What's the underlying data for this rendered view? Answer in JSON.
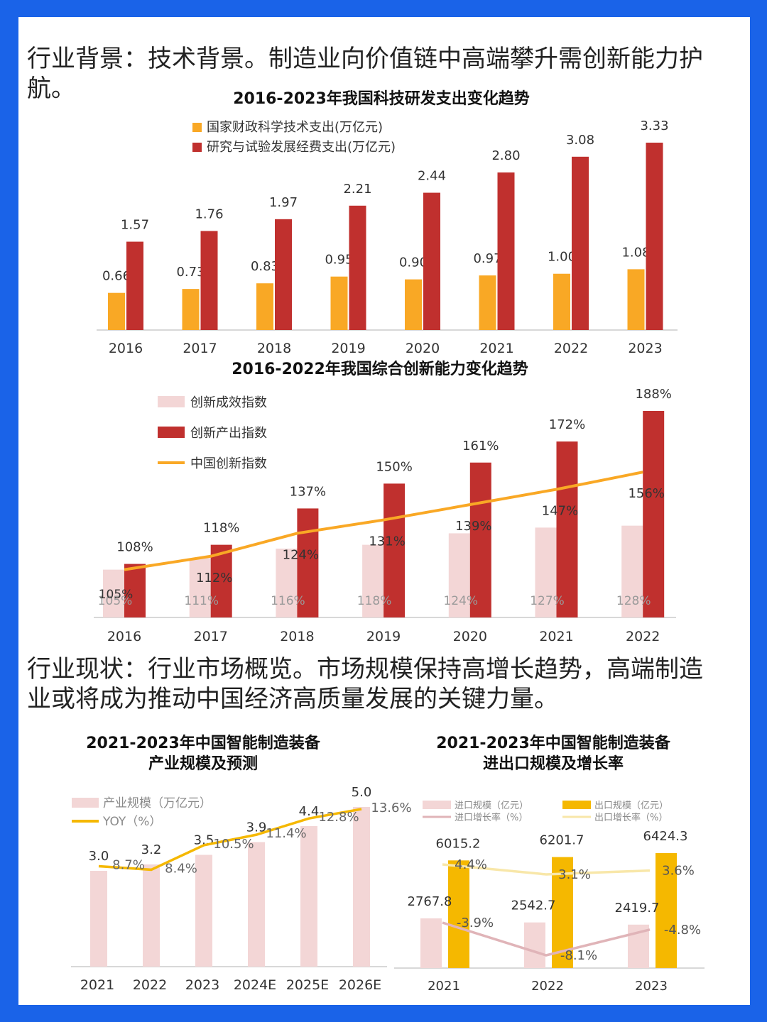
{
  "headings": {
    "background": "行业背景：技术背景。制造业向价值链中高端攀升需创新能力护航。",
    "status": "行业现状：行业市场概览。市场规模保持高增长趋势，高端制造业或将成为推动中国经济高质量发展的关键力量。"
  },
  "colors": {
    "frame": "#1a63e8",
    "orange": "#f9a825",
    "darkred": "#c0302e",
    "pink": "#f3d6d6",
    "gold": "#f5b800",
    "lightgold": "#f8e7a9",
    "mauve": "#e0b4b8"
  },
  "chart_data": [
    {
      "type": "bar",
      "title": "2016-2023年我国科技研发支出变化趋势",
      "categories": [
        "2016",
        "2017",
        "2018",
        "2019",
        "2020",
        "2021",
        "2022",
        "2023"
      ],
      "series": [
        {
          "name": "国家财政科学技术支出(万亿元)",
          "values": [
            0.66,
            0.73,
            0.83,
            0.95,
            0.9,
            0.97,
            1.0,
            1.08
          ],
          "labels": [
            "0.66",
            "0.73",
            "0.83",
            "0.95",
            "0.90",
            "0.97",
            "1.00",
            "1.08"
          ]
        },
        {
          "name": "研究与试验发展经费支出(万亿元)",
          "values": [
            1.57,
            1.76,
            1.97,
            2.21,
            2.44,
            2.8,
            3.08,
            3.33
          ],
          "labels": [
            "1.57",
            "1.76",
            "1.97",
            "2.21",
            "2.44",
            "2.80",
            "3.08",
            "3.33"
          ]
        }
      ],
      "ylim": [
        0,
        3.33
      ],
      "legend": "top-left"
    },
    {
      "type": "bar",
      "title": "2016-2022年我国综合创新能力变化趋势",
      "categories": [
        "2016",
        "2017",
        "2018",
        "2019",
        "2020",
        "2021",
        "2022"
      ],
      "series": [
        {
          "name": "创新成效指数",
          "values": [
            105,
            111,
            116,
            118,
            124,
            127,
            128
          ],
          "labels": [
            "105%",
            "111%",
            "116%",
            "118%",
            "124%",
            "127%",
            "128%"
          ]
        },
        {
          "name": "创新产出指数",
          "values": [
            108,
            118,
            137,
            150,
            161,
            172,
            188
          ],
          "labels": [
            "108%",
            "118%",
            "137%",
            "150%",
            "161%",
            "172%",
            "188%"
          ]
        },
        {
          "name": "中国创新指数",
          "type": "line",
          "values": [
            105,
            112,
            124,
            131,
            139,
            147,
            156
          ],
          "labels": [
            "105%",
            "112%",
            "124%",
            "131%",
            "139%",
            "147%",
            "156%"
          ]
        }
      ],
      "ylim": [
        80,
        188
      ],
      "legend": "top-left"
    },
    {
      "type": "bar",
      "title": "2021-2023年中国智能制造装备\n产业规模及预测",
      "categories": [
        "2021",
        "2022",
        "2023",
        "2024E",
        "2025E",
        "2026E"
      ],
      "series": [
        {
          "name": "产业规模（万亿元）",
          "values": [
            3.0,
            3.2,
            3.5,
            3.9,
            4.4,
            5.0
          ],
          "labels": [
            "3.0",
            "3.2",
            "3.5",
            "3.9",
            "4.4",
            "5.0"
          ]
        },
        {
          "name": "YOY（%）",
          "type": "line",
          "values": [
            8.7,
            8.4,
            10.5,
            11.4,
            12.8,
            13.6
          ],
          "labels": [
            "8.7%",
            "8.4%",
            "10.5%",
            "11.4%",
            "12.8%",
            "13.6%"
          ]
        }
      ],
      "ylim": [
        0,
        5.0
      ],
      "legend": "top-left"
    },
    {
      "type": "bar",
      "title": "2021-2023年中国智能制造装备\n进出口规模及增长率",
      "categories": [
        "2021",
        "2022",
        "2023"
      ],
      "series": [
        {
          "name": "进口规模（亿元）",
          "values": [
            2767.8,
            2542.7,
            2419.7
          ],
          "labels": [
            "2767.8",
            "2542.7",
            "2419.7"
          ]
        },
        {
          "name": "出口规模（亿元）",
          "values": [
            6015.2,
            6201.7,
            6424.3
          ],
          "labels": [
            "6015.2",
            "6201.7",
            "6424.3"
          ]
        },
        {
          "name": "进口增长率（%）",
          "type": "line",
          "values": [
            -3.9,
            -8.1,
            -4.8
          ],
          "labels": [
            "-3.9%",
            "-8.1%",
            "-4.8%"
          ]
        },
        {
          "name": "出口增长率（%）",
          "type": "line",
          "values": [
            4.4,
            3.1,
            3.6
          ],
          "labels": [
            "4.4%",
            "3.1%",
            "3.6%"
          ]
        }
      ],
      "ylim": [
        0,
        6424.3
      ],
      "legend": "top"
    }
  ]
}
